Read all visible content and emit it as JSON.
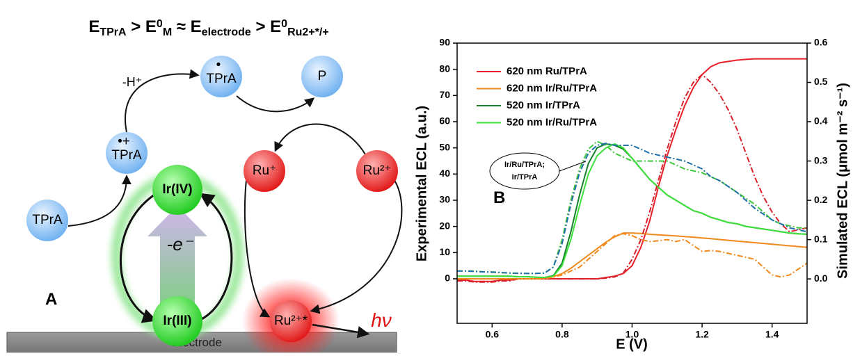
{
  "diagram": {
    "equation": [
      {
        "text": "E",
        "pos": "base"
      },
      {
        "text": "TPrA",
        "pos": "sub"
      },
      {
        "text": " > E",
        "pos": "base"
      },
      {
        "text": "0",
        "pos": "sup"
      },
      {
        "text": "M",
        "pos": "sub"
      },
      {
        "text": " ≈ E",
        "pos": "base"
      },
      {
        "text": "electrode",
        "pos": "sub"
      },
      {
        "text": " > E",
        "pos": "base"
      },
      {
        "text": "0",
        "pos": "sup"
      },
      {
        "text": "Ru2+*/+",
        "pos": "sub"
      }
    ],
    "nodes": [
      {
        "label": "TPrA",
        "mark": "•"
      },
      {
        "label": "P"
      },
      {
        "label": "TPrA",
        "mark": "•+"
      },
      {
        "label": "Ru⁺"
      },
      {
        "label": "Ru²⁺"
      },
      {
        "label": "Ir(IV)"
      },
      {
        "label": "Ir(III)"
      },
      {
        "label": "TPrA"
      },
      {
        "label": "Ru²⁺*"
      }
    ],
    "deprotonation": "-H⁺",
    "oxidation": "-e⁻",
    "emission": "hν",
    "panel": "A",
    "electrode": "Electrode"
  },
  "chart_data": {
    "type": "line",
    "panel": "B",
    "xlabel": "E (V)",
    "ylabel": "Experimental ECL (a.u.)",
    "y2label": "Simulated ECL (μmol m⁻² s⁻¹)",
    "annotation": [
      "Ir/Ru/TPrA;",
      "Ir/TPrA"
    ],
    "xlim": [
      0.5,
      1.5
    ],
    "xticks": [
      0.6,
      0.8,
      {
        "value": 1,
        "label": "1.0"
      },
      1.2,
      1.4
    ],
    "ylim": [
      -17,
      90
    ],
    "yticks": [
      0,
      10,
      20,
      30,
      40,
      50,
      60,
      70,
      80,
      90
    ],
    "y2lim": [
      -0.113,
      0.6
    ],
    "y2ticks": [
      {
        "value": 0,
        "label": "0.0"
      },
      0.1,
      0.2,
      0.3,
      0.4,
      0.5,
      0.6
    ],
    "x": [
      0.5,
      0.525,
      0.55,
      0.575,
      0.6,
      0.625,
      0.65,
      0.675,
      0.7,
      0.725,
      0.75,
      0.775,
      0.8,
      0.825,
      0.85,
      0.875,
      0.9,
      0.925,
      0.95,
      0.975,
      1.0,
      1.025,
      1.05,
      1.075,
      1.1,
      1.125,
      1.15,
      1.175,
      1.2,
      1.225,
      1.25,
      1.275,
      1.3,
      1.325,
      1.35,
      1.375,
      1.4,
      1.425,
      1.45,
      1.475,
      1.5
    ],
    "series": [
      {
        "name": "620 nm Ru/TPrA",
        "color": "#e8202a",
        "values": [
          -0.5,
          -0.5,
          -1,
          -1,
          -1,
          -0.5,
          -0.5,
          0,
          0,
          0,
          0,
          0,
          0,
          0,
          0,
          0,
          0,
          0.5,
          1,
          2,
          5,
          12,
          22,
          35,
          47,
          57,
          66,
          73,
          78,
          81,
          82.5,
          83,
          83.5,
          83.8,
          84,
          84,
          84,
          84,
          84,
          84,
          84
        ]
      },
      {
        "name": "620 nm Ir/Ru/TPrA",
        "color": "#f08a1c",
        "values": [
          0,
          0,
          0,
          0,
          0,
          0,
          0,
          0,
          0,
          0,
          0.3,
          0.8,
          2,
          4,
          6.5,
          9,
          11.5,
          14,
          16,
          17.5,
          17.5,
          17.3,
          17,
          16.8,
          16.6,
          16.4,
          16.1,
          15.9,
          15.6,
          15.3,
          15,
          14.7,
          14.4,
          14.1,
          13.8,
          13.5,
          13.2,
          12.9,
          12.6,
          12.3,
          12
        ]
      },
      {
        "name": "520 nm Ir/TPrA",
        "color": "#16802a",
        "values": [
          1,
          1,
          1,
          1,
          1,
          1,
          1,
          0.8,
          0.8,
          0.6,
          0.5,
          1.2,
          6,
          18,
          32,
          44,
          50,
          51.5,
          51,
          49.5,
          46,
          42,
          38,
          35,
          32,
          30,
          28,
          26,
          25,
          23.5,
          22.5,
          21.5,
          21,
          20,
          19.5,
          19,
          18.5,
          18,
          17.5,
          17.2,
          17
        ]
      },
      {
        "name": "520 nm Ir/Ru/TPrA",
        "color": "#3ee03a",
        "values": [
          1,
          1,
          1,
          1,
          1,
          1,
          1,
          0.8,
          0.8,
          0.6,
          0.5,
          1,
          5,
          15,
          28,
          40,
          47,
          50,
          51.5,
          50,
          46,
          42,
          38,
          35,
          32,
          30,
          28,
          26,
          25,
          23.5,
          22.5,
          21.5,
          21,
          20,
          19.5,
          19,
          18.5,
          18,
          17.5,
          17.2,
          17
        ]
      },
      {
        "color": "#d8202a",
        "dash": true,
        "axis": "y2",
        "values": [
          -0.005,
          -0.005,
          -0.008,
          -0.008,
          -0.008,
          -0.005,
          -0.005,
          0,
          0,
          0,
          0,
          0,
          0,
          0,
          0,
          0,
          0,
          0.002,
          0.005,
          0.015,
          0.05,
          0.1,
          0.17,
          0.25,
          0.33,
          0.4,
          0.46,
          0.5,
          0.52,
          0.5,
          0.47,
          0.43,
          0.38,
          0.32,
          0.26,
          0.21,
          0.17,
          0.14,
          0.12,
          0.125,
          0.13
        ]
      },
      {
        "color": "#f08a1c",
        "dash": true,
        "axis": "y2",
        "values": [
          0,
          0,
          0,
          0,
          0,
          0,
          0,
          0,
          0,
          0,
          0,
          0.005,
          0.01,
          0.02,
          0.03,
          0.05,
          0.07,
          0.09,
          0.11,
          0.115,
          0.11,
          0.1,
          0.095,
          0.097,
          0.1,
          0.095,
          0.1,
          0.085,
          0.07,
          0.072,
          0.07,
          0.065,
          0.06,
          0.055,
          0.05,
          0.03,
          0.01,
          0.005,
          0.01,
          0.025,
          0.04
        ]
      },
      {
        "color": "#3ec83a",
        "dash": true,
        "axis": "y2",
        "values": [
          0.02,
          0.02,
          0.02,
          0.018,
          0.018,
          0.016,
          0.015,
          0.015,
          0.014,
          0.014,
          0.015,
          0.03,
          0.1,
          0.2,
          0.28,
          0.33,
          0.35,
          0.34,
          0.32,
          0.31,
          0.3,
          0.3,
          0.3,
          0.3,
          0.3,
          0.29,
          0.28,
          0.275,
          0.27,
          0.26,
          0.25,
          0.235,
          0.22,
          0.205,
          0.19,
          0.17,
          0.15,
          0.14,
          0.135,
          0.13,
          0.13
        ]
      },
      {
        "color": "#1f6fa8",
        "dash": true,
        "axis": "y2",
        "values": [
          0.02,
          0.02,
          0.019,
          0.018,
          0.017,
          0.016,
          0.015,
          0.014,
          0.014,
          0.014,
          0.015,
          0.03,
          0.09,
          0.19,
          0.27,
          0.32,
          0.34,
          0.345,
          0.34,
          0.34,
          0.34,
          0.33,
          0.32,
          0.315,
          0.31,
          0.305,
          0.3,
          0.29,
          0.28,
          0.26,
          0.25,
          0.235,
          0.22,
          0.2,
          0.18,
          0.165,
          0.15,
          0.14,
          0.13,
          0.125,
          0.12
        ]
      }
    ]
  }
}
